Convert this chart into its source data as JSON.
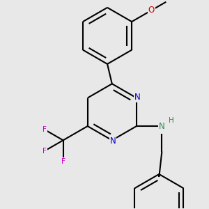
{
  "bg_color": "#e8e8e8",
  "bond_color": "#000000",
  "bond_width": 1.5,
  "N_color": "#0000cc",
  "NH_color": "#2e8b57",
  "O_color": "#cc0000",
  "F_color": "#cc00cc",
  "font_size": 8.5,
  "xlim": [
    -1.1,
    1.1
  ],
  "ylim": [
    -1.1,
    1.1
  ]
}
